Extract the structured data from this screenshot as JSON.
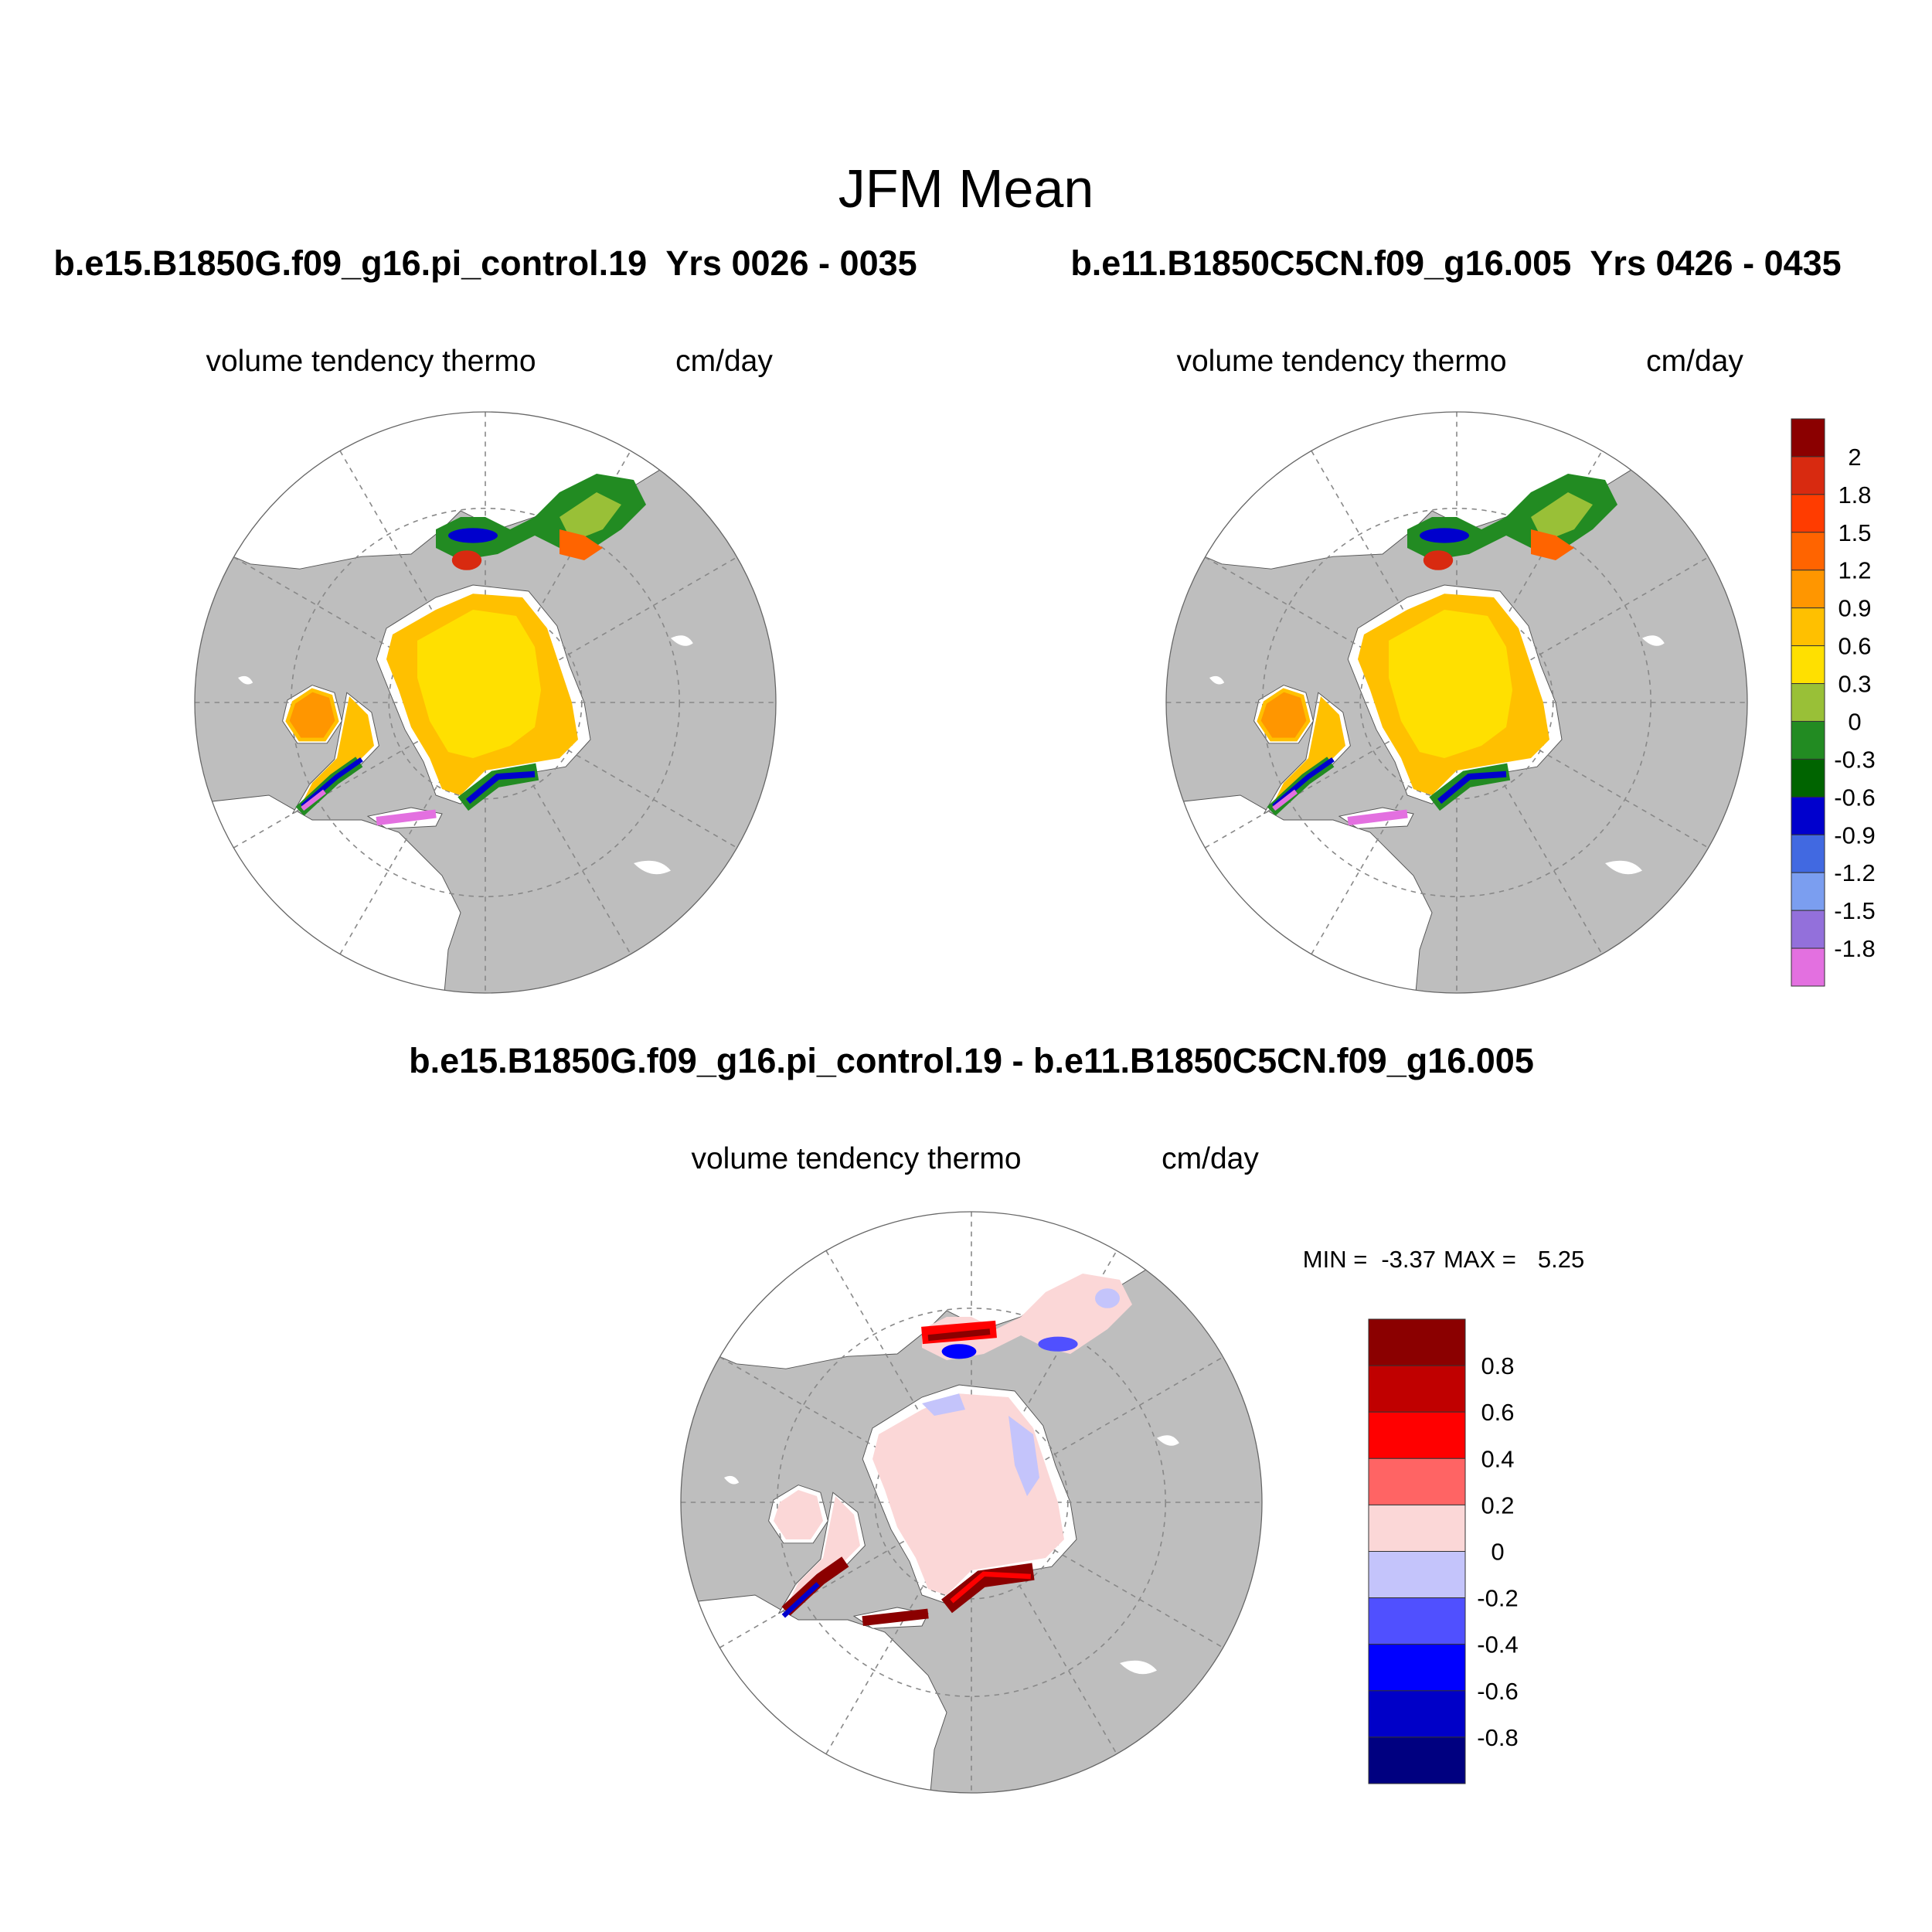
{
  "title": "JFM Mean",
  "panels": [
    {
      "case": "b.e15.B1850G.f09_g16.pi_control.19  Yrs 0026 - 0035",
      "variable": "volume tendency thermo",
      "units": "cm/day"
    },
    {
      "case": "b.e11.B1850C5CN.f09_g16.005  Yrs 0426 - 0435",
      "variable": "volume tendency thermo",
      "units": "cm/day"
    }
  ],
  "difference": {
    "title": "b.e15.B1850G.f09_g16.pi_control.19 - b.e11.B1850C5CN.f09_g16.005",
    "variable": "volume tendency thermo",
    "units": "cm/day",
    "min_label": "MIN =",
    "min": -3.37,
    "max_label": "MAX =",
    "max": 5.25
  },
  "colorbars": [
    {
      "colors": [
        "#8b0000",
        "#d82a10",
        "#ff3c00",
        "#ff6400",
        "#ff9600",
        "#ffc000",
        "#ffe000",
        "#99c037",
        "#228b22",
        "#006400",
        "#0000cd",
        "#4169e1",
        "#7b9ef0",
        "#9370db",
        "#e370e0"
      ],
      "ticks": [
        2,
        1.8,
        1.5,
        1.2,
        0.9,
        0.6,
        0.3,
        0,
        -0.3,
        -0.6,
        -0.9,
        -1.2,
        -1.5,
        -1.8
      ]
    },
    {
      "colors": [
        "#8b0000",
        "#c00000",
        "#ff0000",
        "#ff6464",
        "#fbd7d7",
        "#c4c4fb",
        "#5050ff",
        "#0000ff",
        "#0000c8",
        "#000080"
      ],
      "ticks": [
        0.8,
        0.6,
        0.4,
        0.2,
        0,
        -0.2,
        -0.4,
        -0.6,
        -0.8
      ]
    }
  ]
}
